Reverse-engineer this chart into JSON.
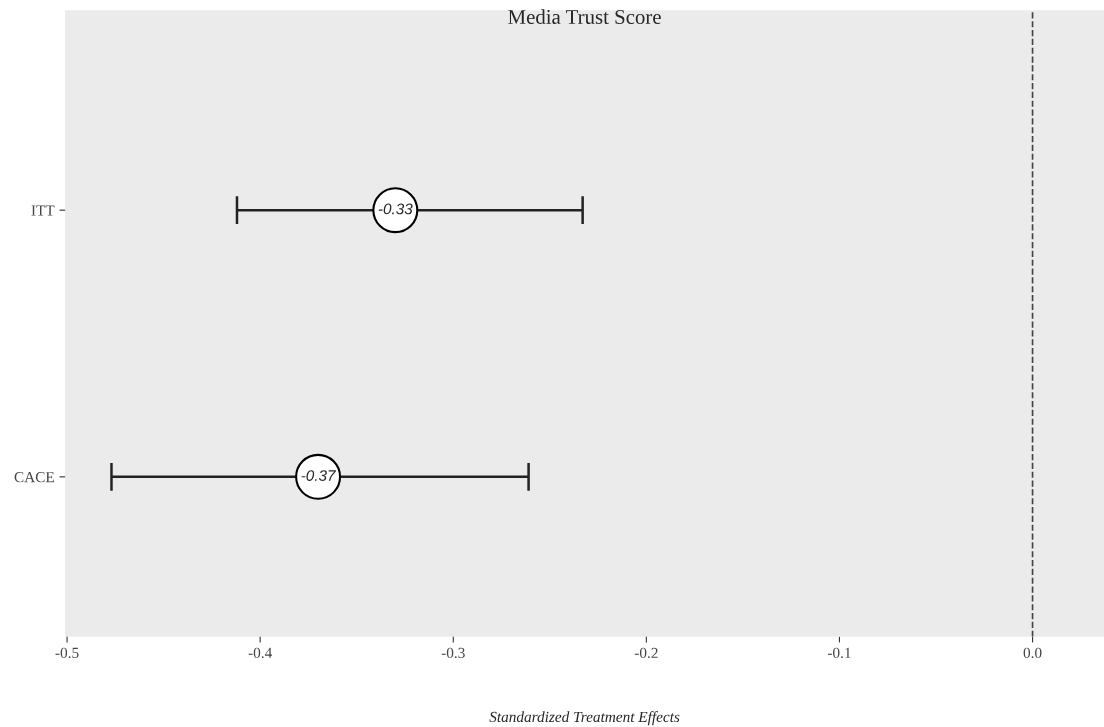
{
  "chart_data": {
    "type": "scatter",
    "orientation": "horizontal",
    "title": "Media Trust Score",
    "xlabel": "Standardized Treatment Effects",
    "categories": [
      "ITT",
      "CACE"
    ],
    "values": [
      -0.33,
      -0.37
    ],
    "color": "#ffffff",
    "errors": [
      [
        -0.412,
        -0.233
      ],
      [
        -0.477,
        -0.261
      ]
    ],
    "data_labels": true,
    "marker": "circle",
    "xlim": [
      -0.501,
      0.037
    ],
    "xticks": [
      {
        "value": -0.5,
        "label": "-0.5"
      },
      {
        "value": -0.4,
        "label": "-0.4"
      },
      {
        "value": -0.3,
        "label": "-0.3"
      },
      {
        "value": -0.2,
        "label": "-0.2"
      },
      {
        "value": -0.1,
        "label": "-0.1"
      },
      {
        "value": 0.0,
        "label": "0.0"
      }
    ],
    "ref_lines": [
      {
        "axis": "x",
        "value": 0,
        "line_style": "dashed",
        "color": "#444444"
      }
    ],
    "grid": false,
    "legend": false
  }
}
